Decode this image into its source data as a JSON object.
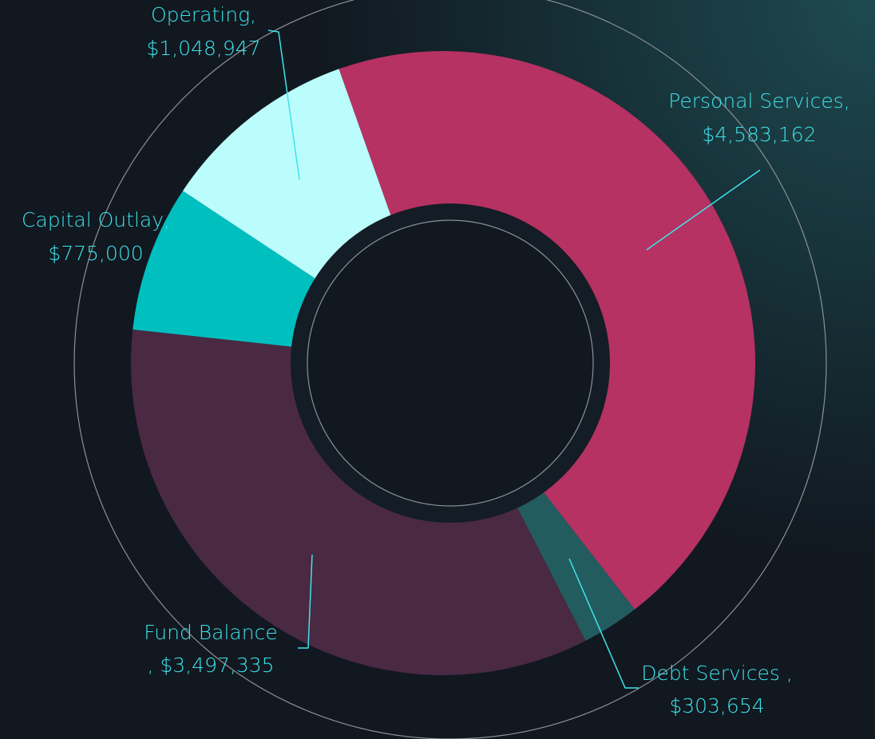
{
  "chart_data": {
    "type": "donut",
    "categories": [
      "Personal Services",
      "Debt Services ",
      "Fund Balance",
      "Capital Outlay",
      "Operating"
    ],
    "values": [
      4583162,
      303654,
      3497335,
      775000,
      1048947
    ],
    "value_labels": [
      "$4,583,162",
      "$303,654",
      "$3,497,335",
      "$775,000",
      "$1,048,947"
    ],
    "label_separator": ",",
    "colors": [
      "#b53262",
      "#225c5f",
      "#4a2943",
      "#00bfbf",
      "#bbfdfd"
    ],
    "label_color": "#3fe3ea"
  }
}
